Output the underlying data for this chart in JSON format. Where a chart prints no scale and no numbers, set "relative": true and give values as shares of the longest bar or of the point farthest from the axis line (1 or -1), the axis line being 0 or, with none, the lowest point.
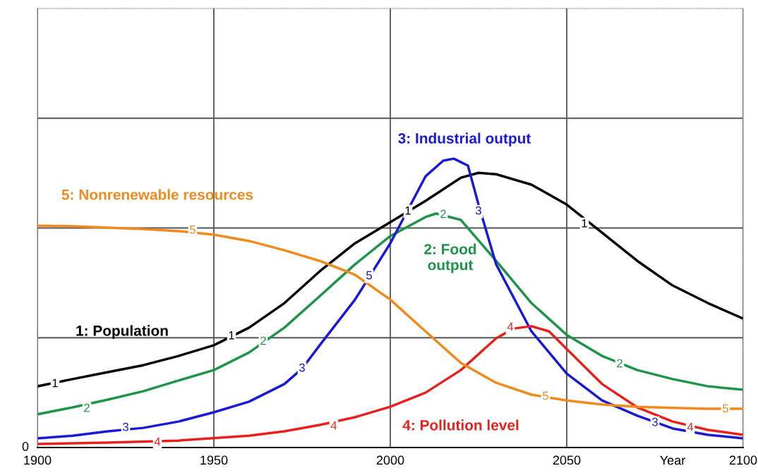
{
  "chart_data": {
    "type": "line",
    "relative": true,
    "xlim": [
      1900,
      2100
    ],
    "xticks": [
      1900,
      1950,
      2000,
      2050,
      2100
    ],
    "xlabel": "Year",
    "grid": true,
    "marker": "none",
    "line_style": "solid",
    "series": [
      {
        "name": "1: Population",
        "color": "#000000",
        "x": [
          1900,
          1910,
          1920,
          1930,
          1940,
          1950,
          1960,
          1970,
          1980,
          1990,
          2000,
          2010,
          2020,
          2025,
          2030,
          2040,
          2050,
          2060,
          2070,
          2080,
          2090,
          2100
        ],
        "values": [
          0.212,
          0.237,
          0.261,
          0.285,
          0.317,
          0.354,
          0.415,
          0.5,
          0.61,
          0.707,
          0.78,
          0.854,
          0.934,
          0.951,
          0.946,
          0.91,
          0.841,
          0.744,
          0.646,
          0.561,
          0.5,
          0.446
        ]
      },
      {
        "name": "2: Food\noutput",
        "color": "#1e9448",
        "x": [
          1900,
          1910,
          1920,
          1930,
          1940,
          1950,
          1960,
          1970,
          1980,
          1990,
          2000,
          2010,
          2013,
          2020,
          2030,
          2040,
          2050,
          2060,
          2070,
          2080,
          2090,
          2100
        ],
        "values": [
          0.115,
          0.139,
          0.166,
          0.195,
          0.232,
          0.268,
          0.329,
          0.415,
          0.524,
          0.634,
          0.732,
          0.798,
          0.81,
          0.788,
          0.646,
          0.5,
          0.39,
          0.317,
          0.268,
          0.237,
          0.212,
          0.2
        ]
      },
      {
        "name": "3: Industrial output",
        "color": "#1a1ad6",
        "x": [
          1900,
          1910,
          1920,
          1930,
          1940,
          1950,
          1960,
          1970,
          1975,
          1980,
          1990,
          2000,
          2010,
          2015,
          2018,
          2022,
          2025,
          2030,
          2040,
          2050,
          2060,
          2070,
          2080,
          2090,
          2100
        ],
        "values": [
          0.032,
          0.041,
          0.056,
          0.068,
          0.09,
          0.122,
          0.159,
          0.22,
          0.273,
          0.354,
          0.512,
          0.707,
          0.939,
          0.993,
          1.0,
          0.976,
          0.841,
          0.634,
          0.402,
          0.256,
          0.163,
          0.11,
          0.066,
          0.044,
          0.032
        ]
      },
      {
        "name": "4: Pollution level",
        "color": "#e8201c",
        "x": [
          1900,
          1920,
          1940,
          1960,
          1970,
          1980,
          1990,
          2000,
          2010,
          2020,
          2030,
          2035,
          2040,
          2045,
          2050,
          2060,
          2070,
          2080,
          2090,
          2100
        ],
        "values": [
          0.012,
          0.017,
          0.024,
          0.041,
          0.056,
          0.078,
          0.105,
          0.141,
          0.19,
          0.268,
          0.378,
          0.412,
          0.42,
          0.402,
          0.341,
          0.22,
          0.139,
          0.09,
          0.061,
          0.044
        ]
      },
      {
        "name": "5: Nonrenewable resources",
        "color": "#f08a1c",
        "x": [
          1900,
          1910,
          1920,
          1930,
          1940,
          1950,
          1960,
          1970,
          1980,
          1990,
          2000,
          2010,
          2020,
          2030,
          2040,
          2050,
          2060,
          2070,
          2080,
          2090,
          2100
        ],
        "values": [
          0.768,
          0.766,
          0.761,
          0.756,
          0.749,
          0.737,
          0.715,
          0.683,
          0.646,
          0.598,
          0.512,
          0.402,
          0.293,
          0.224,
          0.183,
          0.163,
          0.149,
          0.141,
          0.137,
          0.134,
          0.134
        ]
      }
    ],
    "annotations": [
      "0",
      {
        "text": "1",
        "x": 1905,
        "y": 0.22
      },
      {
        "text": "1",
        "x": 1955,
        "y": 0.385
      },
      {
        "text": "1",
        "x": 2005,
        "y": 0.817
      },
      {
        "text": "1",
        "x": 2055,
        "y": 0.773
      },
      {
        "text": "2",
        "x": 1914,
        "y": 0.134
      },
      {
        "text": "2",
        "x": 1964,
        "y": 0.366
      },
      {
        "text": "2",
        "x": 2015,
        "y": 0.805
      },
      {
        "text": "2",
        "x": 2065,
        "y": 0.288
      },
      {
        "text": "3",
        "x": 1925,
        "y": 0.068
      },
      {
        "text": "3",
        "x": 1975,
        "y": 0.273
      },
      {
        "text": "3",
        "x": 2025,
        "y": 0.817
      },
      {
        "text": "3",
        "x": 2075,
        "y": 0.085
      },
      {
        "text": "4",
        "x": 1934,
        "y": 0.017
      },
      {
        "text": "4",
        "x": 1984,
        "y": 0.073
      },
      {
        "text": "4",
        "x": 2034,
        "y": 0.415
      },
      {
        "text": "4",
        "x": 2085,
        "y": 0.068
      },
      {
        "text": "5",
        "x": 1944,
        "y": 0.751
      },
      {
        "text": "5",
        "x": 1994,
        "y": 0.593
      },
      {
        "text": "5",
        "x": 2044,
        "y": 0.176
      },
      {
        "text": "5",
        "x": 2095,
        "y": 0.132
      }
    ]
  }
}
